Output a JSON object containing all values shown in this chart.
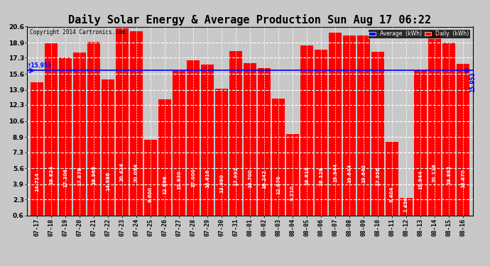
{
  "title": "Daily Solar Energy & Average Production Sun Aug 17 06:22",
  "copyright": "Copyright 2014 Cartronics.com",
  "categories": [
    "07-17",
    "07-18",
    "07-19",
    "07-20",
    "07-21",
    "07-22",
    "07-23",
    "07-24",
    "07-25",
    "07-26",
    "07-27",
    "07-28",
    "07-29",
    "07-30",
    "07-31",
    "08-01",
    "08-02",
    "08-03",
    "08-04",
    "08-05",
    "08-06",
    "08-07",
    "08-08",
    "08-09",
    "08-10",
    "08-11",
    "08-12",
    "08-13",
    "08-14",
    "08-15",
    "08-16"
  ],
  "values": [
    14.714,
    18.824,
    17.306,
    17.878,
    18.968,
    14.986,
    20.424,
    20.094,
    8.6,
    12.898,
    15.93,
    17.0,
    16.616,
    13.99,
    17.992,
    16.7,
    16.242,
    12.976,
    9.21,
    18.618,
    18.128,
    19.944,
    19.644,
    19.642,
    17.956,
    8.404,
    2.496,
    15.944,
    20.128,
    18.882,
    16.67
  ],
  "average": 15.953,
  "bar_color": "#ff0000",
  "average_color": "#0000ff",
  "background_color": "#c8c8c8",
  "plot_bg_color": "#c8c8c8",
  "ymin": 0.6,
  "ymax": 20.6,
  "yticks": [
    0.6,
    2.3,
    3.9,
    5.6,
    7.3,
    8.9,
    10.6,
    12.3,
    13.9,
    15.6,
    17.3,
    18.9,
    20.6
  ],
  "title_fontsize": 11,
  "legend_avg_label": "Average  (kWh)",
  "legend_daily_label": "Daily  (kWh)",
  "avg_label": "15.953",
  "value_fontsize": 5.0,
  "xlabel_fontsize": 6.0,
  "ytick_fontsize": 6.5,
  "grid_color": "#ffffff"
}
